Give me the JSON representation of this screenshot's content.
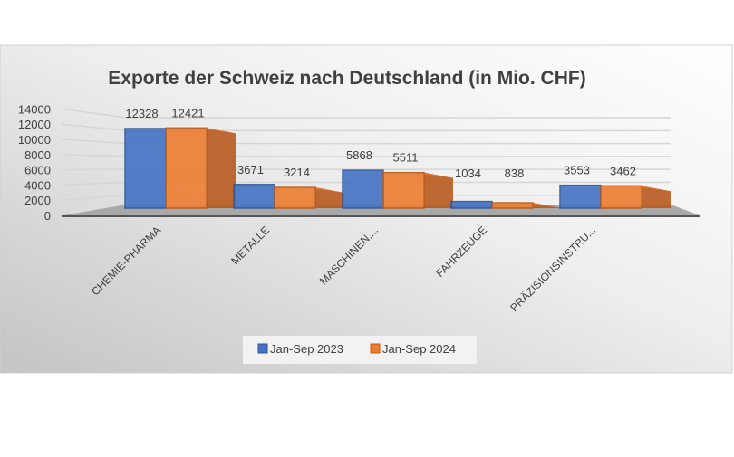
{
  "chart_data": {
    "type": "bar",
    "title": "Exporte der Schweiz nach Deutschland (in Mio. CHF)",
    "categories": [
      "CHEMIE-PHARMA",
      "METALLE",
      "MASCHINEN,...",
      "FAHRZEUGE",
      "PRÄZISIONSINSTRU..."
    ],
    "series": [
      {
        "name": "Jan-Sep 2023",
        "values": [
          12328,
          3671,
          5868,
          1034,
          3553
        ],
        "color": "#4472C4"
      },
      {
        "name": "Jan-Sep 2024",
        "values": [
          12421,
          3214,
          5511,
          838,
          3462
        ],
        "color": "#ED7D31"
      }
    ],
    "yticks": [
      0,
      2000,
      4000,
      6000,
      8000,
      10000,
      12000,
      14000
    ],
    "ylim": [
      0,
      14000
    ],
    "xlabel": "",
    "ylabel": "",
    "grid": true,
    "legend": "bottom",
    "style": "3d-column"
  }
}
